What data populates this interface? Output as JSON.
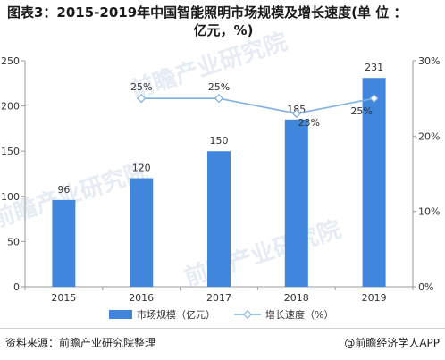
{
  "title_line1": "图表3：2015-2019年中国智能照明市场规模及增长速度(单 位 ：",
  "title_line2": "亿元，%)",
  "footer": {
    "source": "资料来源：前瞻产业研究院整理",
    "brand": "@前瞻经济学人APP"
  },
  "watermark": "前瞻产业研究院",
  "chart_data": {
    "type": "bar+line",
    "categories": [
      "2015",
      "2016",
      "2017",
      "2018",
      "2019"
    ],
    "series": [
      {
        "name": "市场规模（亿元）",
        "type": "bar",
        "axis": "left",
        "values": [
          96,
          120,
          150,
          185,
          231
        ],
        "labels": [
          "96",
          "120",
          "150",
          "185",
          "231"
        ],
        "color": "#3f86dc"
      },
      {
        "name": "增长速度（%）",
        "type": "line",
        "axis": "right",
        "values": [
          null,
          25,
          25,
          23,
          25
        ],
        "labels": [
          "",
          "25%",
          "25%",
          "23%",
          "25%"
        ],
        "color": "#7fb0e0"
      }
    ],
    "y_left": {
      "min": 0,
      "max": 250,
      "ticks": [
        0,
        50,
        100,
        150,
        200,
        250
      ],
      "tick_labels": [
        "0",
        "50",
        "100",
        "150",
        "200",
        "250"
      ]
    },
    "y_right": {
      "min": 0,
      "max": 30,
      "ticks": [
        0,
        10,
        20,
        30
      ],
      "tick_labels": [
        "0%",
        "10%",
        "20%",
        "30%"
      ]
    },
    "grid": false,
    "legend_position": "bottom"
  }
}
